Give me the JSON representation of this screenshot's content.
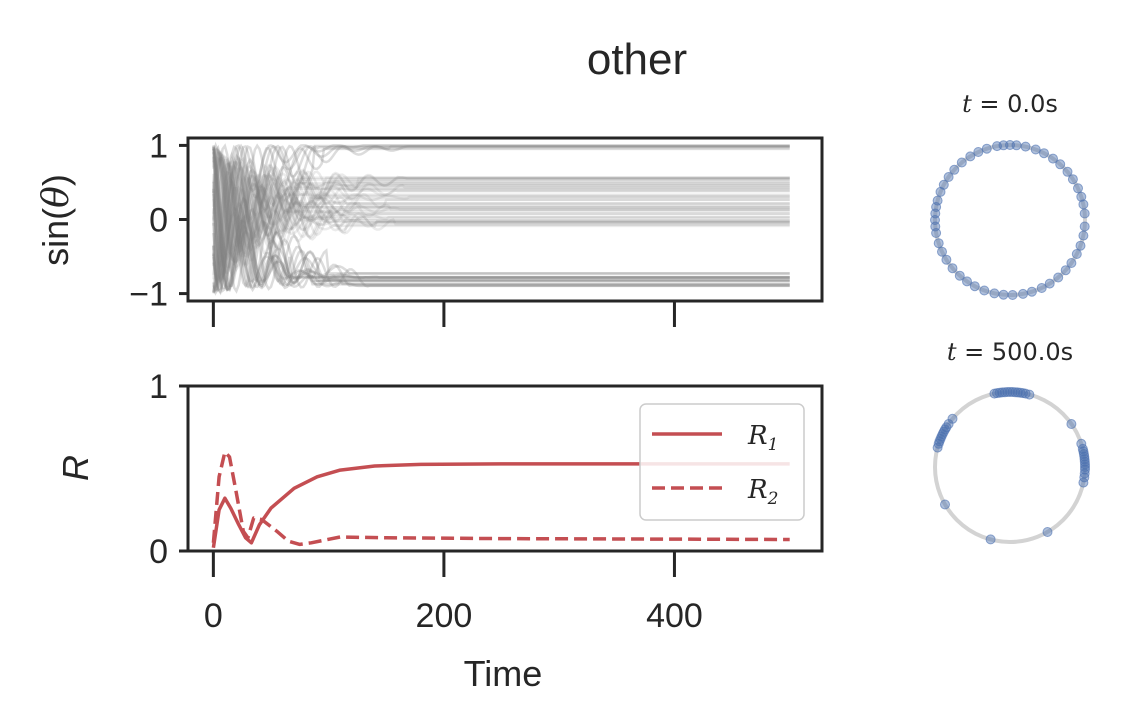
{
  "figure_title": "other",
  "chart_data": [
    {
      "type": "line",
      "panel": "phases",
      "ylabel": "sin(θ)",
      "xlim": [
        -22,
        528
      ],
      "ylim": [
        -1.1,
        1.1
      ],
      "yticks": [
        1,
        0,
        -1
      ],
      "ytick_labels": [
        "1",
        "0",
        "−1"
      ],
      "xticks": [
        0,
        200,
        400
      ],
      "series_style": "many semi-transparent gray traces (one per oscillator)",
      "color": "#808080",
      "settled_levels": [
        0.98,
        0.55,
        0.5,
        0.4,
        0.3,
        0.2,
        0.1,
        0.0,
        -0.05,
        -0.75,
        -0.8,
        -0.9
      ]
    },
    {
      "type": "line",
      "panel": "order_parameter",
      "ylabel": "R",
      "xlabel": "Time",
      "xlim": [
        -22,
        528
      ],
      "ylim": [
        0,
        1
      ],
      "yticks": [
        1,
        0
      ],
      "xticks": [
        0,
        200,
        400
      ],
      "xtick_labels": [
        "0",
        "200",
        "400"
      ],
      "legend_placement": "right",
      "series": [
        {
          "name": "R1",
          "style": "solid",
          "color": "#c44e52",
          "points": [
            [
              0,
              0.02
            ],
            [
              5,
              0.25
            ],
            [
              10,
              0.32
            ],
            [
              15,
              0.26
            ],
            [
              22,
              0.16
            ],
            [
              28,
              0.08
            ],
            [
              33,
              0.05
            ],
            [
              40,
              0.16
            ],
            [
              50,
              0.26
            ],
            [
              70,
              0.38
            ],
            [
              90,
              0.45
            ],
            [
              110,
              0.49
            ],
            [
              140,
              0.515
            ],
            [
              180,
              0.525
            ],
            [
              250,
              0.528
            ],
            [
              350,
              0.528
            ],
            [
              500,
              0.528
            ]
          ]
        },
        {
          "name": "R2",
          "style": "dashed",
          "color": "#c44e52",
          "points": [
            [
              0,
              0.05
            ],
            [
              5,
              0.45
            ],
            [
              10,
              0.6
            ],
            [
              14,
              0.57
            ],
            [
              20,
              0.35
            ],
            [
              26,
              0.12
            ],
            [
              30,
              0.08
            ],
            [
              35,
              0.2
            ],
            [
              42,
              0.19
            ],
            [
              55,
              0.12
            ],
            [
              65,
              0.06
            ],
            [
              75,
              0.04
            ],
            [
              85,
              0.05
            ],
            [
              110,
              0.085
            ],
            [
              150,
              0.08
            ],
            [
              250,
              0.075
            ],
            [
              500,
              0.07
            ]
          ]
        }
      ]
    },
    {
      "type": "scatter",
      "panel": "circle_t0",
      "title": "t = 0.0s",
      "color": "#4c72b0",
      "angles_deg": [
        5,
        12,
        18,
        25,
        33,
        40,
        48,
        55,
        63,
        70,
        78,
        85,
        90,
        95,
        100,
        108,
        115,
        122,
        130,
        138,
        145,
        152,
        158,
        165,
        170,
        175,
        180,
        185,
        190,
        198,
        205,
        212,
        220,
        228,
        235,
        242,
        250,
        258,
        265,
        272,
        280,
        287,
        295,
        302,
        310,
        318,
        325,
        333,
        340,
        348,
        355
      ]
    },
    {
      "type": "scatter",
      "panel": "circle_t500",
      "title": "t = 500.0s",
      "color": "#4c72b0",
      "angles_deg": [
        75,
        78,
        80,
        82,
        84,
        86,
        88,
        90,
        92,
        94,
        96,
        98,
        100,
        102,
        140,
        145,
        148,
        150,
        152,
        154,
        156,
        158,
        160,
        162,
        165,
        210,
        255,
        300,
        348,
        352,
        355,
        358,
        0,
        2,
        4,
        6,
        8,
        10,
        12,
        14,
        18,
        35
      ]
    }
  ],
  "legend": {
    "items": [
      {
        "label": "R",
        "sub": "1",
        "style": "solid"
      },
      {
        "label": "R",
        "sub": "2",
        "style": "dashed"
      }
    ]
  },
  "circle_titles": {
    "t0": {
      "var": "t",
      "rest": " = 0.0s"
    },
    "t500": {
      "var": "t",
      "rest": " = 500.0s"
    }
  }
}
